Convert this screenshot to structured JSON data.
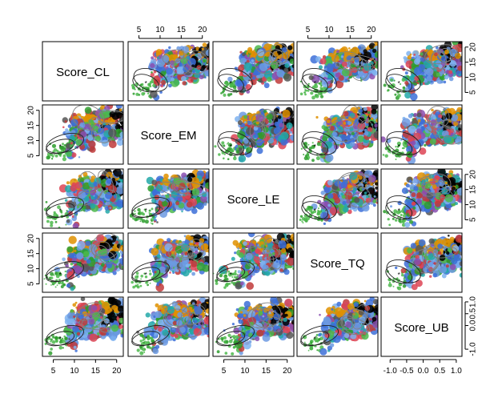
{
  "chart_data": {
    "type": "scatter",
    "variables": [
      "Score_CL",
      "Score_EM",
      "Score_LE",
      "Score_TQ",
      "Score_UB"
    ],
    "axis_ticks": {
      "Score_CL": [
        "5",
        "10",
        "15",
        "20"
      ],
      "Score_EM": [
        "5",
        "10",
        "15",
        "20"
      ],
      "Score_LE": [
        "5",
        "10",
        "15",
        "20"
      ],
      "Score_TQ": [
        "5",
        "10",
        "15",
        "20"
      ],
      "Score_UB": [
        "-1.0",
        "-0.5",
        "0.0",
        "0.5",
        "1.0"
      ]
    },
    "axis_ranges": {
      "Score_CL": [
        3,
        21
      ],
      "Score_EM": [
        3,
        21
      ],
      "Score_LE": [
        3,
        21
      ],
      "Score_TQ": [
        3,
        21
      ],
      "Score_UB": [
        -1.2,
        1.1
      ]
    },
    "top_axis": [
      {
        "col": 1,
        "ticks": [
          "5",
          "10",
          "15",
          "20"
        ]
      },
      {
        "col": 3,
        "ticks": [
          "5",
          "10",
          "15",
          "20"
        ]
      }
    ],
    "bottom_axis": [
      {
        "col": 0,
        "ticks": [
          "5",
          "10",
          "15",
          "20"
        ]
      },
      {
        "col": 2,
        "ticks": [
          "5",
          "10",
          "15",
          "20"
        ]
      },
      {
        "col": 4,
        "ticks": [
          "-1.0",
          "-0.5",
          "0.0",
          "0.5",
          "1.0"
        ]
      }
    ],
    "left_axis": [
      {
        "row": 1,
        "ticks": [
          "5",
          "10",
          "15",
          "20"
        ]
      },
      {
        "row": 3,
        "ticks": [
          "5",
          "10",
          "15",
          "20"
        ]
      }
    ],
    "right_axis": [
      {
        "row": 0,
        "ticks": [
          "5",
          "10",
          "15",
          "20"
        ]
      },
      {
        "row": 2,
        "ticks": [
          "5",
          "10",
          "15",
          "20"
        ]
      },
      {
        "row": 4,
        "ticks": [
          "-1.0",
          "0.0",
          "0.5",
          "1.0"
        ]
      }
    ],
    "point_colors": [
      "#000000",
      "#DF9100",
      "#6C9AE2",
      "#3C6FD8",
      "#4CB84C",
      "#2E9E2E",
      "#C03A3A",
      "#8A4FB0",
      "#7FB3F0",
      "#DD4455",
      "#555555",
      "#22A8A8"
    ],
    "ellipse_color": "#222222",
    "overlay_color": "#808080",
    "grid": false,
    "legend": "none"
  }
}
